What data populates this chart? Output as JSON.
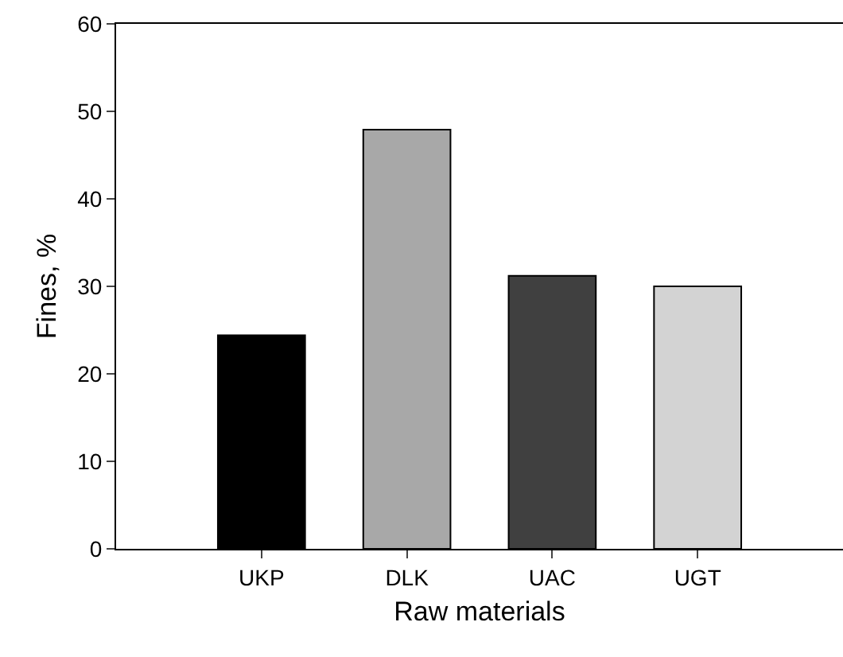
{
  "chart_data": {
    "type": "bar",
    "categories": [
      "UKP",
      "DLK",
      "UAC",
      "UGT"
    ],
    "values": [
      24.4,
      47.9,
      31.2,
      30.0
    ],
    "colors": [
      "#000000",
      "#a8a8a8",
      "#404040",
      "#d3d3d3"
    ],
    "xlabel": "Raw materials",
    "ylabel": "Fines, %",
    "ylim": [
      0,
      60
    ],
    "yticks": [
      0,
      10,
      20,
      30,
      40,
      50,
      60
    ]
  }
}
